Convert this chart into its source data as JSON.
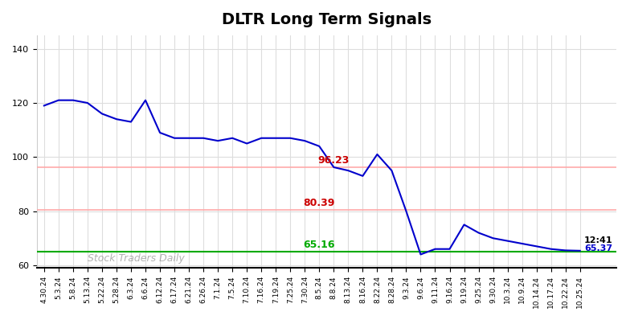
{
  "title": "DLTR Long Term Signals",
  "x_labels": [
    "4.30.24",
    "5.3.24",
    "5.8.24",
    "5.13.24",
    "5.22.24",
    "5.28.24",
    "6.3.24",
    "6.6.24",
    "6.12.24",
    "6.17.24",
    "6.21.24",
    "6.26.24",
    "7.1.24",
    "7.5.24",
    "7.10.24",
    "7.16.24",
    "7.19.24",
    "7.25.24",
    "7.30.24",
    "8.5.24",
    "8.8.24",
    "8.13.24",
    "8.16.24",
    "8.22.24",
    "8.28.24",
    "9.3.24",
    "9.6.24",
    "9.11.24",
    "9.16.24",
    "9.19.24",
    "9.25.24",
    "9.30.24",
    "10.3.24",
    "10.9.24",
    "10.14.24",
    "10.17.24",
    "10.22.24",
    "10.25.24"
  ],
  "prices": [
    119,
    121,
    121,
    120,
    116,
    114,
    113,
    121,
    109,
    107,
    107,
    107,
    106,
    107,
    105,
    107,
    107,
    107,
    106,
    104,
    96.23,
    95,
    93,
    101,
    95,
    80,
    64,
    66,
    66,
    75,
    72,
    70,
    69,
    68,
    67,
    66,
    65.5,
    65.37
  ],
  "hline_green": 65.16,
  "hline_red1": 96.23,
  "hline_red2": 80.39,
  "label_96": "96.23",
  "label_80": "80.39",
  "label_65": "65.16",
  "label_time": "12:41",
  "label_price": "65.37",
  "yticks": [
    60,
    80,
    100,
    120,
    140
  ],
  "ylim": [
    59,
    145
  ],
  "watermark": "Stock Traders Daily",
  "line_color": "#0000cc",
  "green_color": "#00aa00",
  "red_color": "#cc0000",
  "pink_line_color": "#ffaaaa",
  "bg_color": "#ffffff",
  "grid_color": "#dddddd"
}
